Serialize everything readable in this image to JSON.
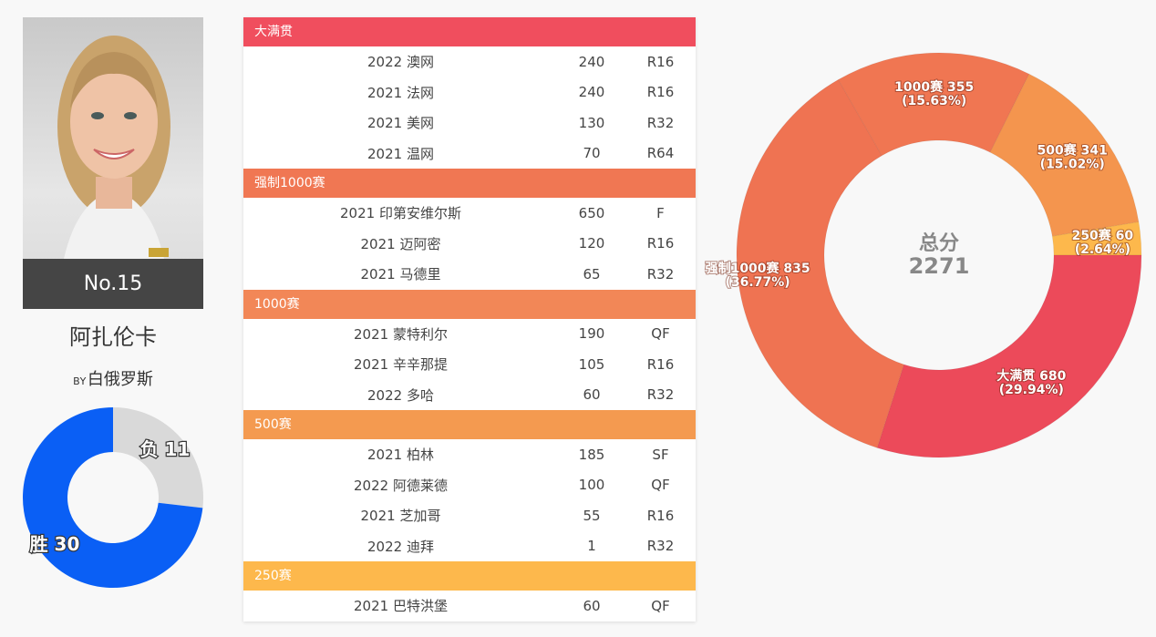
{
  "player": {
    "rank": "No.15",
    "name": "阿扎伦卡",
    "country_code": "BY",
    "country": "白俄罗斯",
    "photo_icon": "player-portrait"
  },
  "record": {
    "win_label": "胜 30",
    "loss_label": "负 11",
    "wins": 30,
    "losses": 11,
    "colors": {
      "win": "#0a5ff5",
      "loss": "#d9d9d9"
    }
  },
  "table": {
    "sections": [
      {
        "title": "大满贯",
        "color": "#f04e5e",
        "rows": [
          {
            "event": "2022 澳网",
            "points": "240",
            "result": "R16"
          },
          {
            "event": "2021 法网",
            "points": "240",
            "result": "R16"
          },
          {
            "event": "2021 美网",
            "points": "130",
            "result": "R32"
          },
          {
            "event": "2021 温网",
            "points": "70",
            "result": "R64"
          }
        ]
      },
      {
        "title": "强制1000赛",
        "color": "#f07753",
        "rows": [
          {
            "event": "2021 印第安维尔斯",
            "points": "650",
            "result": "F"
          },
          {
            "event": "2021 迈阿密",
            "points": "120",
            "result": "R16"
          },
          {
            "event": "2021 马德里",
            "points": "65",
            "result": "R32"
          }
        ]
      },
      {
        "title": "1000赛",
        "color": "#f28757",
        "rows": [
          {
            "event": "2021 蒙特利尔",
            "points": "190",
            "result": "QF"
          },
          {
            "event": "2021 辛辛那提",
            "points": "105",
            "result": "R16"
          },
          {
            "event": "2022 多哈",
            "points": "60",
            "result": "R32"
          }
        ]
      },
      {
        "title": "500赛",
        "color": "#f49a50",
        "rows": [
          {
            "event": "2021 柏林",
            "points": "185",
            "result": "SF"
          },
          {
            "event": "2022 阿德莱德",
            "points": "100",
            "result": "QF"
          },
          {
            "event": "2021 芝加哥",
            "points": "55",
            "result": "R16"
          },
          {
            "event": "2022 迪拜",
            "points": "1",
            "result": "R32"
          }
        ]
      },
      {
        "title": "250赛",
        "color": "#fdb84c",
        "rows": [
          {
            "event": "2021 巴特洪堡",
            "points": "60",
            "result": "QF"
          }
        ]
      }
    ]
  },
  "chart_data": [
    {
      "type": "pie",
      "categories": [
        "胜",
        "负"
      ],
      "values": [
        30,
        11
      ],
      "labels": [
        "胜 30",
        "负 11"
      ],
      "colors": [
        "#0a5ff5",
        "#d9d9d9"
      ]
    },
    {
      "type": "pie",
      "center_title": "总分",
      "center_value": "2271",
      "categories": [
        "250赛",
        "大满贯",
        "强制1000赛",
        "1000赛",
        "500赛"
      ],
      "values": [
        60,
        680,
        835,
        355,
        341
      ],
      "labels": [
        "250赛 60",
        "大满贯 680",
        "强制1000赛 835",
        "1000赛 355",
        "500赛 341"
      ],
      "percents": [
        "(2.64%)",
        "(29.94%)",
        "(36.77%)",
        "(15.63%)",
        "(15.02%)"
      ],
      "colors": [
        "#fdb84c",
        "#ec4a5a",
        "#ef7352",
        "#f07652",
        "#f4954e"
      ]
    }
  ]
}
